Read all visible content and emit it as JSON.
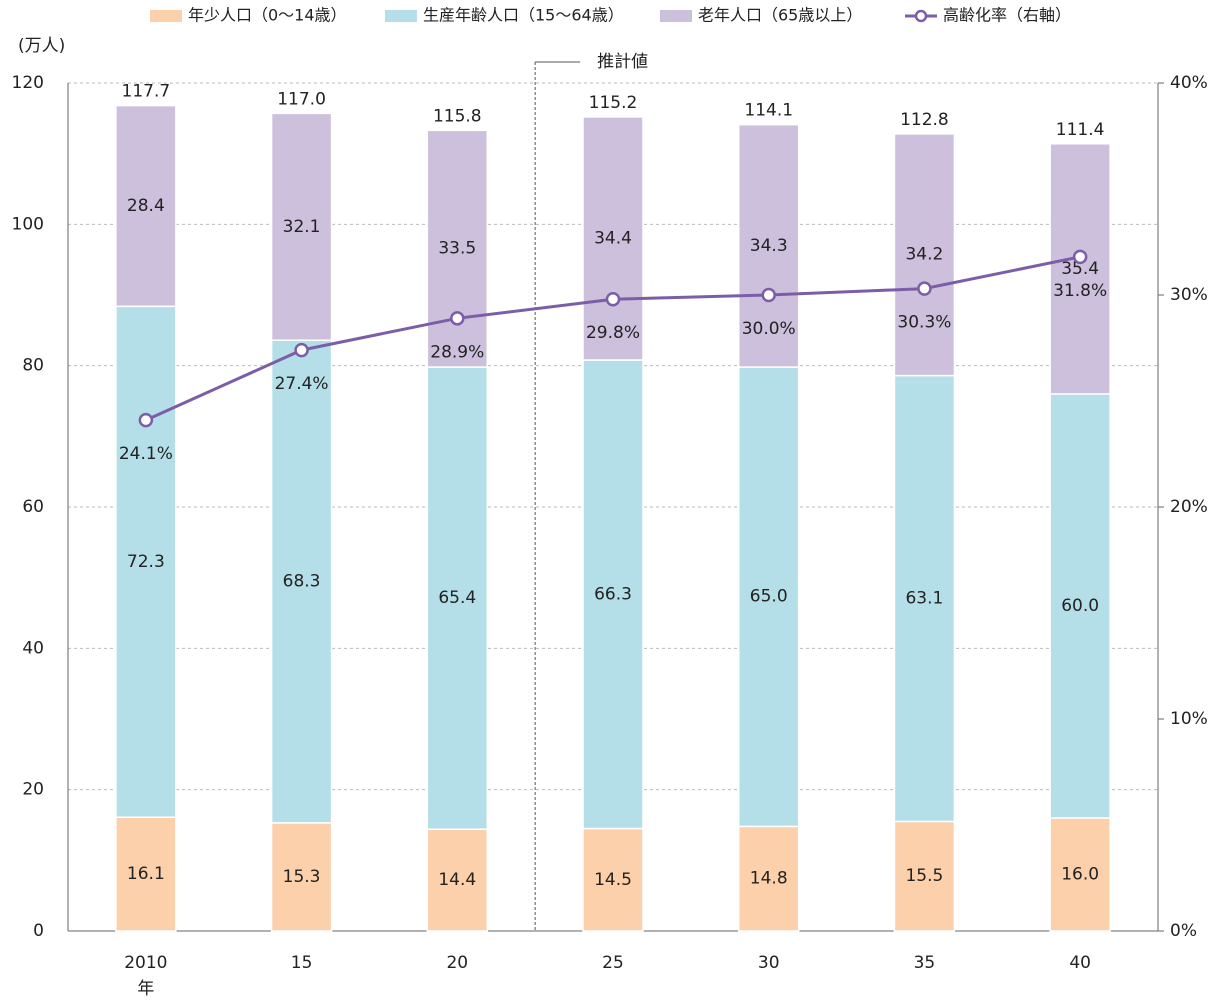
{
  "chart_data": {
    "type": "bar",
    "stacked": true,
    "y_unit_label": "(万人)",
    "x_unit_label": "年",
    "annotation": "推計値",
    "categories": [
      "2010",
      "15",
      "20",
      "25",
      "30",
      "35",
      "40"
    ],
    "series": [
      {
        "name": "年少人口（0〜14歳）",
        "color": "#fbd0aa",
        "values": [
          16.1,
          15.3,
          14.4,
          14.5,
          14.8,
          15.5,
          16.0
        ],
        "value_labels": [
          "16.1",
          "15.3",
          "14.4",
          "14.5",
          "14.8",
          "15.5",
          "16.0"
        ]
      },
      {
        "name": "生産年齢人口（15〜64歳）",
        "color": "#b5dfe8",
        "values": [
          72.3,
          68.3,
          65.4,
          66.3,
          65.0,
          63.1,
          60.0
        ],
        "value_labels": [
          "72.3",
          "68.3",
          "65.4",
          "66.3",
          "65.0",
          "63.1",
          "60.0"
        ]
      },
      {
        "name": "老年人口（65歳以上）",
        "color": "#cdc0dc",
        "values": [
          28.4,
          32.1,
          33.5,
          34.4,
          34.3,
          34.2,
          35.4
        ],
        "value_labels": [
          "28.4",
          "32.1",
          "33.5",
          "34.4",
          "34.3",
          "34.2",
          "35.4"
        ]
      },
      {
        "name": "高齢化率（右軸）",
        "type": "line",
        "axis": "y2",
        "color": "#7b5ea7",
        "values": [
          24.1,
          27.4,
          28.9,
          29.8,
          30.0,
          30.3,
          31.8
        ],
        "value_labels": [
          "24.1%",
          "27.4%",
          "28.9%",
          "29.8%",
          "30.0%",
          "30.3%",
          "31.8%"
        ]
      }
    ],
    "totals": {
      "values": [
        117.7,
        117.0,
        115.8,
        115.2,
        114.1,
        112.8,
        111.4
      ],
      "value_labels": [
        "117.7",
        "117.0",
        "115.8",
        "115.2",
        "114.1",
        "112.8",
        "111.4"
      ]
    },
    "ylim": [
      0,
      120
    ],
    "yticks": [
      0,
      20,
      40,
      60,
      80,
      100,
      120
    ],
    "y2lim": [
      0,
      40
    ],
    "y2ticks": [
      {
        "value": 0,
        "label": "0%"
      },
      {
        "value": 10,
        "label": "10%"
      },
      {
        "value": 20,
        "label": "20%"
      },
      {
        "value": 30,
        "label": "30%"
      },
      {
        "value": 40,
        "label": "40%"
      }
    ],
    "grid": true
  }
}
